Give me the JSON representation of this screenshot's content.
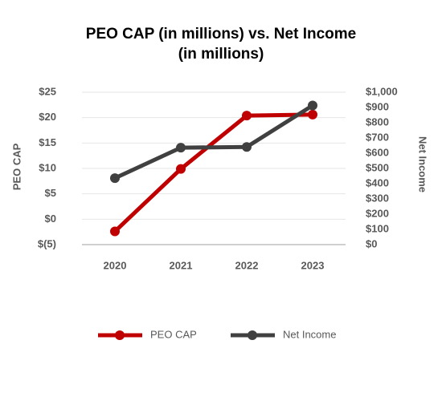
{
  "chart_data": {
    "type": "line",
    "title": "PEO CAP (in millions) vs. Net Income (in millions)",
    "y_label": "PEO CAP",
    "y2_label": "Net Income",
    "categories": [
      "2020",
      "2021",
      "2022",
      "2023"
    ],
    "series": [
      {
        "name": "PEO CAP",
        "color": "#c00000",
        "values": [
          -2.4,
          9.9,
          20.4,
          20.6
        ]
      },
      {
        "name": "Net Income",
        "color": "#404040",
        "axis": "y2",
        "values": [
          436,
          636,
          641,
          913
        ]
      }
    ],
    "ylim": [
      -5,
      25
    ],
    "yticks": [
      {
        "value": -5,
        "label": "$(5)"
      },
      {
        "value": 0,
        "label": "$0"
      },
      {
        "value": 5,
        "label": "$5"
      },
      {
        "value": 10,
        "label": "$10"
      },
      {
        "value": 15,
        "label": "$15"
      },
      {
        "value": 20,
        "label": "$20"
      },
      {
        "value": 25,
        "label": "$25"
      }
    ],
    "y2lim": [
      0,
      1000
    ],
    "y2ticks": [
      {
        "value": 0,
        "label": "$0"
      },
      {
        "value": 100,
        "label": "$100"
      },
      {
        "value": 200,
        "label": "$200"
      },
      {
        "value": 300,
        "label": "$300"
      },
      {
        "value": 400,
        "label": "$400"
      },
      {
        "value": 500,
        "label": "$500"
      },
      {
        "value": 600,
        "label": "$600"
      },
      {
        "value": 700,
        "label": "$700"
      },
      {
        "value": 800,
        "label": "$800"
      },
      {
        "value": 900,
        "label": "$900"
      },
      {
        "value": 1000,
        "label": "$1,000"
      }
    ],
    "grid": true,
    "legend": "bottom"
  }
}
